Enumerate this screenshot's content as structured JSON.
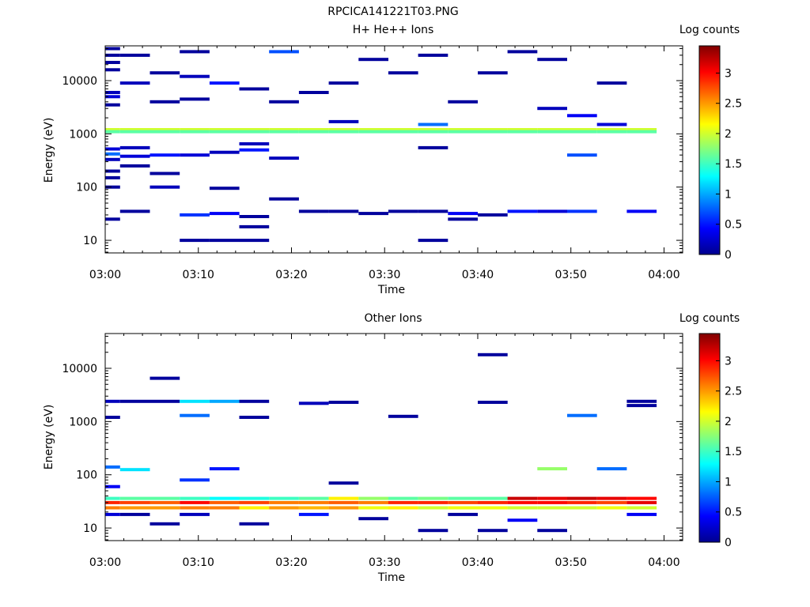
{
  "figure_title": "RPCICA141221T03.PNG",
  "chart_data": [
    {
      "type": "heatmap",
      "title": "H+ He++ Ions",
      "xlabel": "Time",
      "ylabel": "Energy (eV)",
      "xlim": [
        "03:00",
        "04:02"
      ],
      "ylim": [
        5.8,
        45000
      ],
      "yscale": "log",
      "x_ticks": [
        "03:00",
        "03:10",
        "03:20",
        "03:30",
        "03:40",
        "03:50",
        "04:00"
      ],
      "y_ticks": [
        "10",
        "100",
        "1000",
        "10000"
      ],
      "colorbar": {
        "label": "Log counts",
        "range": [
          0,
          3.45
        ],
        "ticks": [
          "0",
          "0.5",
          "1",
          "1.5",
          "2",
          "2.5",
          "3"
        ]
      },
      "time_bins": [
        "03:01:36",
        "03:04:48",
        "03:08:00",
        "03:11:12",
        "03:14:24",
        "03:17:36",
        "03:20:48",
        "03:24:00",
        "03:27:12",
        "03:30:24",
        "03:33:36",
        "03:36:48",
        "03:40:00",
        "03:43:12",
        "03:46:24",
        "03:49:36",
        "03:52:48",
        "03:56:00",
        "03:59:12",
        "04:02:24"
      ],
      "cells": [
        {
          "col": 0,
          "e": 40000,
          "v": 0.1
        },
        {
          "col": 0,
          "e": 30000,
          "v": 0.1
        },
        {
          "col": 0,
          "e": 22000,
          "v": 0.1
        },
        {
          "col": 0,
          "e": 16000,
          "v": 0.1
        },
        {
          "col": 0,
          "e": 6000,
          "v": 0.2
        },
        {
          "col": 0,
          "e": 5000,
          "v": 0.3
        },
        {
          "col": 0,
          "e": 3500,
          "v": 0.1
        },
        {
          "col": 0,
          "e": 1200,
          "v": 2.0
        },
        {
          "col": 0,
          "e": 1100,
          "v": 1.6
        },
        {
          "col": 0,
          "e": 520,
          "v": 0.3
        },
        {
          "col": 0,
          "e": 420,
          "v": 0.8
        },
        {
          "col": 0,
          "e": 330,
          "v": 0.2
        },
        {
          "col": 0,
          "e": 200,
          "v": 0.1
        },
        {
          "col": 0,
          "e": 150,
          "v": 0.1
        },
        {
          "col": 0,
          "e": 100,
          "v": 0.1
        },
        {
          "col": 0,
          "e": 25,
          "v": 0.1
        },
        {
          "col": 1,
          "e": 30000,
          "v": 0.1
        },
        {
          "col": 1,
          "e": 9000,
          "v": 0.2
        },
        {
          "col": 1,
          "e": 1200,
          "v": 2.0
        },
        {
          "col": 1,
          "e": 1100,
          "v": 1.6
        },
        {
          "col": 1,
          "e": 550,
          "v": 0.2
        },
        {
          "col": 1,
          "e": 380,
          "v": 0.3
        },
        {
          "col": 1,
          "e": 250,
          "v": 0.1
        },
        {
          "col": 1,
          "e": 35,
          "v": 0.1
        },
        {
          "col": 2,
          "e": 14000,
          "v": 0.1
        },
        {
          "col": 2,
          "e": 4000,
          "v": 0.1
        },
        {
          "col": 2,
          "e": 1200,
          "v": 2.0
        },
        {
          "col": 2,
          "e": 1100,
          "v": 1.6
        },
        {
          "col": 2,
          "e": 400,
          "v": 0.5
        },
        {
          "col": 2,
          "e": 180,
          "v": 0.1
        },
        {
          "col": 2,
          "e": 100,
          "v": 0.2
        },
        {
          "col": 3,
          "e": 35000,
          "v": 0.1
        },
        {
          "col": 3,
          "e": 12000,
          "v": 0.2
        },
        {
          "col": 3,
          "e": 4500,
          "v": 0.1
        },
        {
          "col": 3,
          "e": 1200,
          "v": 2.0
        },
        {
          "col": 3,
          "e": 1100,
          "v": 1.6
        },
        {
          "col": 3,
          "e": 400,
          "v": 0.3
        },
        {
          "col": 3,
          "e": 30,
          "v": 0.6
        },
        {
          "col": 3,
          "e": 10,
          "v": 0.1
        },
        {
          "col": 4,
          "e": 9000,
          "v": 0.5
        },
        {
          "col": 4,
          "e": 1200,
          "v": 2.0
        },
        {
          "col": 4,
          "e": 1100,
          "v": 1.6
        },
        {
          "col": 4,
          "e": 450,
          "v": 0.2
        },
        {
          "col": 4,
          "e": 95,
          "v": 0.1
        },
        {
          "col": 4,
          "e": 32,
          "v": 0.4
        },
        {
          "col": 4,
          "e": 10,
          "v": 0.1
        },
        {
          "col": 5,
          "e": 7000,
          "v": 0.1
        },
        {
          "col": 5,
          "e": 1200,
          "v": 2.0
        },
        {
          "col": 5,
          "e": 1100,
          "v": 1.6
        },
        {
          "col": 5,
          "e": 650,
          "v": 0.2
        },
        {
          "col": 5,
          "e": 500,
          "v": 0.5
        },
        {
          "col": 5,
          "e": 28,
          "v": 0.1
        },
        {
          "col": 5,
          "e": 18,
          "v": 0.1
        },
        {
          "col": 5,
          "e": 10,
          "v": 0.1
        },
        {
          "col": 6,
          "e": 35000,
          "v": 0.7
        },
        {
          "col": 6,
          "e": 4000,
          "v": 0.1
        },
        {
          "col": 6,
          "e": 1200,
          "v": 2.0
        },
        {
          "col": 6,
          "e": 1100,
          "v": 1.6
        },
        {
          "col": 6,
          "e": 350,
          "v": 0.2
        },
        {
          "col": 6,
          "e": 60,
          "v": 0.1
        },
        {
          "col": 7,
          "e": 6000,
          "v": 0.1
        },
        {
          "col": 7,
          "e": 1200,
          "v": 2.0
        },
        {
          "col": 7,
          "e": 1100,
          "v": 1.6
        },
        {
          "col": 7,
          "e": 35,
          "v": 0.1
        },
        {
          "col": 8,
          "e": 9000,
          "v": 0.1
        },
        {
          "col": 8,
          "e": 1700,
          "v": 0.2
        },
        {
          "col": 8,
          "e": 1200,
          "v": 2.0
        },
        {
          "col": 8,
          "e": 1100,
          "v": 1.6
        },
        {
          "col": 8,
          "e": 35,
          "v": 0.1
        },
        {
          "col": 9,
          "e": 25000,
          "v": 0.1
        },
        {
          "col": 9,
          "e": 1200,
          "v": 2.0
        },
        {
          "col": 9,
          "e": 1100,
          "v": 1.6
        },
        {
          "col": 9,
          "e": 32,
          "v": 0.1
        },
        {
          "col": 10,
          "e": 14000,
          "v": 0.1
        },
        {
          "col": 10,
          "e": 1200,
          "v": 2.0
        },
        {
          "col": 10,
          "e": 1100,
          "v": 1.6
        },
        {
          "col": 10,
          "e": 35,
          "v": 0.1
        },
        {
          "col": 11,
          "e": 30000,
          "v": 0.1
        },
        {
          "col": 11,
          "e": 1500,
          "v": 0.8
        },
        {
          "col": 11,
          "e": 1200,
          "v": 2.0
        },
        {
          "col": 11,
          "e": 1100,
          "v": 1.6
        },
        {
          "col": 11,
          "e": 550,
          "v": 0.1
        },
        {
          "col": 11,
          "e": 35,
          "v": 0.1
        },
        {
          "col": 11,
          "e": 10,
          "v": 0.1
        },
        {
          "col": 12,
          "e": 4000,
          "v": 0.1
        },
        {
          "col": 12,
          "e": 1200,
          "v": 2.0
        },
        {
          "col": 12,
          "e": 1100,
          "v": 1.6
        },
        {
          "col": 12,
          "e": 32,
          "v": 0.4
        },
        {
          "col": 12,
          "e": 25,
          "v": 0.1
        },
        {
          "col": 13,
          "e": 14000,
          "v": 0.1
        },
        {
          "col": 13,
          "e": 1200,
          "v": 2.0
        },
        {
          "col": 13,
          "e": 1100,
          "v": 1.6
        },
        {
          "col": 13,
          "e": 30,
          "v": 0.1
        },
        {
          "col": 14,
          "e": 35000,
          "v": 0.1
        },
        {
          "col": 14,
          "e": 1200,
          "v": 2.0
        },
        {
          "col": 14,
          "e": 1100,
          "v": 1.6
        },
        {
          "col": 14,
          "e": 35,
          "v": 0.5
        },
        {
          "col": 15,
          "e": 25000,
          "v": 0.1
        },
        {
          "col": 15,
          "e": 3000,
          "v": 0.2
        },
        {
          "col": 15,
          "e": 1200,
          "v": 2.0
        },
        {
          "col": 15,
          "e": 1100,
          "v": 1.6
        },
        {
          "col": 15,
          "e": 35,
          "v": 0.3
        },
        {
          "col": 16,
          "e": 2200,
          "v": 0.4
        },
        {
          "col": 16,
          "e": 1200,
          "v": 2.0
        },
        {
          "col": 16,
          "e": 1100,
          "v": 1.6
        },
        {
          "col": 16,
          "e": 400,
          "v": 0.7
        },
        {
          "col": 16,
          "e": 35,
          "v": 0.6
        },
        {
          "col": 17,
          "e": 9000,
          "v": 0.1
        },
        {
          "col": 17,
          "e": 1500,
          "v": 0.3
        },
        {
          "col": 17,
          "e": 1200,
          "v": 2.0
        },
        {
          "col": 17,
          "e": 1100,
          "v": 1.6
        },
        {
          "col": 18,
          "e": 1200,
          "v": 2.0
        },
        {
          "col": 18,
          "e": 1100,
          "v": 1.6
        },
        {
          "col": 18,
          "e": 35,
          "v": 0.4
        }
      ]
    },
    {
      "type": "heatmap",
      "title": "Other Ions",
      "xlabel": "Time",
      "ylabel": "Energy (eV)",
      "xlim": [
        "03:00",
        "04:02"
      ],
      "ylim": [
        5.8,
        45000
      ],
      "yscale": "log",
      "x_ticks": [
        "03:00",
        "03:10",
        "03:20",
        "03:30",
        "03:40",
        "03:50",
        "04:00"
      ],
      "y_ticks": [
        "10",
        "100",
        "1000",
        "10000"
      ],
      "colorbar": {
        "label": "Log counts",
        "range": [
          0,
          3.45
        ],
        "ticks": [
          "0",
          "0.5",
          "1",
          "1.5",
          "2",
          "2.5",
          "3"
        ]
      },
      "time_bins": [
        "03:01:36",
        "03:04:48",
        "03:08:00",
        "03:11:12",
        "03:14:24",
        "03:17:36",
        "03:20:48",
        "03:24:00",
        "03:27:12",
        "03:30:24",
        "03:33:36",
        "03:36:48",
        "03:40:00",
        "03:43:12",
        "03:46:24",
        "03:49:36",
        "03:52:48",
        "03:56:00",
        "03:59:12",
        "04:02:24"
      ],
      "cells": [
        {
          "col": 0,
          "e": 2400,
          "v": 0.2
        },
        {
          "col": 0,
          "e": 1200,
          "v": 0.1
        },
        {
          "col": 0,
          "e": 140,
          "v": 0.8
        },
        {
          "col": 0,
          "e": 60,
          "v": 0.4
        },
        {
          "col": 0,
          "e": 36,
          "v": 1.5
        },
        {
          "col": 0,
          "e": 30,
          "v": 2.9
        },
        {
          "col": 0,
          "e": 24,
          "v": 2.6
        },
        {
          "col": 0,
          "e": 18,
          "v": 0.3
        },
        {
          "col": 1,
          "e": 2400,
          "v": 0.1
        },
        {
          "col": 1,
          "e": 125,
          "v": 1.2
        },
        {
          "col": 1,
          "e": 36,
          "v": 1.6
        },
        {
          "col": 1,
          "e": 30,
          "v": 2.8
        },
        {
          "col": 1,
          "e": 24,
          "v": 2.5
        },
        {
          "col": 1,
          "e": 18,
          "v": 0.1
        },
        {
          "col": 2,
          "e": 6500,
          "v": 0.1
        },
        {
          "col": 2,
          "e": 2400,
          "v": 0.1
        },
        {
          "col": 2,
          "e": 36,
          "v": 1.6
        },
        {
          "col": 2,
          "e": 30,
          "v": 2.7
        },
        {
          "col": 2,
          "e": 24,
          "v": 2.5
        },
        {
          "col": 2,
          "e": 12,
          "v": 0.1
        },
        {
          "col": 3,
          "e": 2400,
          "v": 1.2
        },
        {
          "col": 3,
          "e": 1300,
          "v": 0.8
        },
        {
          "col": 3,
          "e": 80,
          "v": 0.6
        },
        {
          "col": 3,
          "e": 36,
          "v": 1.5
        },
        {
          "col": 3,
          "e": 30,
          "v": 3.0
        },
        {
          "col": 3,
          "e": 24,
          "v": 2.6
        },
        {
          "col": 3,
          "e": 18,
          "v": 0.2
        },
        {
          "col": 4,
          "e": 2400,
          "v": 1.0
        },
        {
          "col": 4,
          "e": 130,
          "v": 0.5
        },
        {
          "col": 4,
          "e": 36,
          "v": 1.3
        },
        {
          "col": 4,
          "e": 30,
          "v": 2.7
        },
        {
          "col": 4,
          "e": 24,
          "v": 2.6
        },
        {
          "col": 5,
          "e": 2400,
          "v": 0.1
        },
        {
          "col": 5,
          "e": 1200,
          "v": 0.1
        },
        {
          "col": 5,
          "e": 36,
          "v": 1.4
        },
        {
          "col": 5,
          "e": 30,
          "v": 2.8
        },
        {
          "col": 5,
          "e": 24,
          "v": 2.2
        },
        {
          "col": 5,
          "e": 12,
          "v": 0.1
        },
        {
          "col": 6,
          "e": 36,
          "v": 1.5
        },
        {
          "col": 6,
          "e": 30,
          "v": 2.6
        },
        {
          "col": 6,
          "e": 24,
          "v": 2.5
        },
        {
          "col": 7,
          "e": 2200,
          "v": 0.2
        },
        {
          "col": 7,
          "e": 36,
          "v": 1.6
        },
        {
          "col": 7,
          "e": 30,
          "v": 2.6
        },
        {
          "col": 7,
          "e": 24,
          "v": 2.4
        },
        {
          "col": 7,
          "e": 18,
          "v": 0.5
        },
        {
          "col": 8,
          "e": 2300,
          "v": 0.1
        },
        {
          "col": 8,
          "e": 70,
          "v": 0.1
        },
        {
          "col": 8,
          "e": 36,
          "v": 2.2
        },
        {
          "col": 8,
          "e": 30,
          "v": 2.7
        },
        {
          "col": 8,
          "e": 24,
          "v": 2.5
        },
        {
          "col": 9,
          "e": 36,
          "v": 1.8
        },
        {
          "col": 9,
          "e": 30,
          "v": 2.6
        },
        {
          "col": 9,
          "e": 24,
          "v": 2.1
        },
        {
          "col": 9,
          "e": 15,
          "v": 0.1
        },
        {
          "col": 10,
          "e": 1250,
          "v": 0.1
        },
        {
          "col": 10,
          "e": 36,
          "v": 1.6
        },
        {
          "col": 10,
          "e": 30,
          "v": 2.9
        },
        {
          "col": 10,
          "e": 24,
          "v": 2.2
        },
        {
          "col": 11,
          "e": 36,
          "v": 1.7
        },
        {
          "col": 11,
          "e": 30,
          "v": 2.9
        },
        {
          "col": 11,
          "e": 24,
          "v": 2.0
        },
        {
          "col": 11,
          "e": 9,
          "v": 0.1
        },
        {
          "col": 12,
          "e": 36,
          "v": 1.6
        },
        {
          "col": 12,
          "e": 30,
          "v": 2.8
        },
        {
          "col": 12,
          "e": 24,
          "v": 2.1
        },
        {
          "col": 12,
          "e": 18,
          "v": 0.1
        },
        {
          "col": 13,
          "e": 18000,
          "v": 0.1
        },
        {
          "col": 13,
          "e": 2300,
          "v": 0.1
        },
        {
          "col": 13,
          "e": 36,
          "v": 1.6
        },
        {
          "col": 13,
          "e": 30,
          "v": 2.9
        },
        {
          "col": 13,
          "e": 24,
          "v": 2.1
        },
        {
          "col": 13,
          "e": 9,
          "v": 0.1
        },
        {
          "col": 14,
          "e": 36,
          "v": 3.2
        },
        {
          "col": 14,
          "e": 30,
          "v": 3.0
        },
        {
          "col": 14,
          "e": 24,
          "v": 2.0
        },
        {
          "col": 14,
          "e": 14,
          "v": 0.4
        },
        {
          "col": 15,
          "e": 130,
          "v": 1.8
        },
        {
          "col": 15,
          "e": 36,
          "v": 3.1
        },
        {
          "col": 15,
          "e": 30,
          "v": 3.0
        },
        {
          "col": 15,
          "e": 24,
          "v": 2.0
        },
        {
          "col": 15,
          "e": 9,
          "v": 0.1
        },
        {
          "col": 16,
          "e": 1300,
          "v": 0.8
        },
        {
          "col": 16,
          "e": 36,
          "v": 3.2
        },
        {
          "col": 16,
          "e": 30,
          "v": 2.9
        },
        {
          "col": 16,
          "e": 24,
          "v": 2.0
        },
        {
          "col": 17,
          "e": 130,
          "v": 0.8
        },
        {
          "col": 17,
          "e": 36,
          "v": 3.1
        },
        {
          "col": 17,
          "e": 30,
          "v": 2.8
        },
        {
          "col": 17,
          "e": 24,
          "v": 2.1
        },
        {
          "col": 18,
          "e": 2400,
          "v": 0.1
        },
        {
          "col": 18,
          "e": 2000,
          "v": 0.1
        },
        {
          "col": 18,
          "e": 36,
          "v": 3.0
        },
        {
          "col": 18,
          "e": 30,
          "v": 3.1
        },
        {
          "col": 18,
          "e": 24,
          "v": 2.0
        },
        {
          "col": 18,
          "e": 18,
          "v": 0.4
        }
      ]
    }
  ]
}
